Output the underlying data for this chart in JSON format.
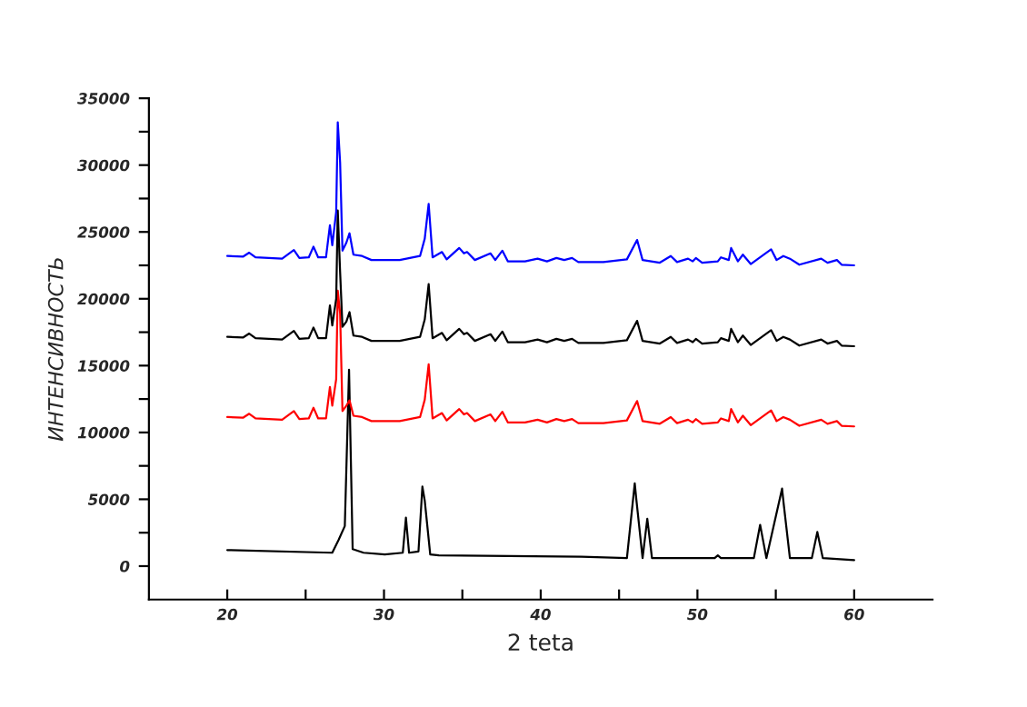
{
  "chart_data": {
    "type": "line",
    "xlabel": "2 teta",
    "ylabel": "ИНТЕНСИВНОСТЬ",
    "xlim": [
      15,
      65
    ],
    "ylim": [
      -2500,
      35000
    ],
    "xticks": [
      20,
      {
        "value": 25,
        "label": null
      },
      30,
      {
        "value": 35,
        "label": null
      },
      40,
      {
        "value": 45,
        "label": null
      },
      50,
      {
        "value": 55,
        "label": null
      },
      60
    ],
    "yticks": [
      0,
      {
        "value": 2500,
        "label": null
      },
      5000,
      {
        "value": 7500,
        "label": null
      },
      10000,
      {
        "value": 12500,
        "label": null
      },
      15000,
      {
        "value": 17500,
        "label": null
      },
      20000,
      {
        "value": 22500,
        "label": null
      },
      25000,
      {
        "value": 27500,
        "label": null
      },
      30000,
      {
        "value": 32500,
        "label": null
      },
      35000
    ],
    "grid": false,
    "legend": false,
    "marker": "none",
    "line_style": "solid",
    "series": [
      {
        "color": "#000000",
        "x": [
          20,
          26.7,
          27.1,
          27.5,
          27.77,
          28.0,
          28.7,
          30.05,
          31.2,
          31.4,
          31.6,
          32.2,
          32.45,
          32.6,
          32.95,
          33.5,
          42.6,
          45.5,
          46.0,
          46.1,
          46.5,
          46.8,
          47.1,
          51.1,
          51.3,
          51.5,
          53.6,
          54.0,
          54.4,
          55.4,
          55.5,
          55.9,
          57.3,
          57.65,
          58.0,
          60
        ],
        "values": [
          1200,
          1000,
          1950,
          3000,
          14700,
          1270,
          1000,
          880,
          1000,
          3630,
          1000,
          1100,
          5950,
          4900,
          880,
          800,
          700,
          600,
          6200,
          5000,
          600,
          3540,
          600,
          600,
          800,
          600,
          600,
          3090,
          600,
          5800,
          4700,
          600,
          600,
          2550,
          600,
          450
        ]
      },
      {
        "color": "#ff0000",
        "x": [
          20,
          21,
          21.4,
          21.8,
          23.5,
          24.25,
          24.6,
          25.2,
          25.5,
          25.8,
          26.3,
          26.55,
          26.7,
          26.95,
          27.05,
          27.2,
          27.35,
          27.6,
          27.8,
          28.05,
          28.6,
          29.2,
          31,
          32.3,
          32.6,
          32.85,
          33.1,
          33.7,
          34,
          34.8,
          35.1,
          35.3,
          35.8,
          36.8,
          37.1,
          37.55,
          37.9,
          39,
          39.8,
          40.4,
          41,
          41.5,
          42,
          42.4,
          44,
          45.5,
          46.15,
          46.5,
          47.6,
          48.3,
          48.7,
          49.4,
          49.7,
          49.9,
          50.3,
          51.3,
          51.5,
          52,
          52.15,
          52.58,
          52.9,
          53.4,
          54.7,
          55.05,
          55.48,
          55.9,
          56.5,
          57.9,
          58.3,
          58.9,
          59.2,
          60
        ],
        "values": [
          11150,
          11100,
          11400,
          11050,
          10950,
          11600,
          11000,
          11050,
          11850,
          11050,
          11050,
          13400,
          12000,
          14000,
          20600,
          18900,
          11600,
          12000,
          12400,
          11250,
          11150,
          10850,
          10850,
          11150,
          12450,
          15100,
          11050,
          11450,
          10900,
          11750,
          11350,
          11450,
          10850,
          11350,
          10850,
          11550,
          10750,
          10750,
          10950,
          10750,
          11000,
          10850,
          11000,
          10700,
          10700,
          10900,
          12350,
          10850,
          10650,
          11150,
          10700,
          10950,
          10750,
          11000,
          10650,
          10750,
          11050,
          10850,
          11750,
          10750,
          11250,
          10550,
          11650,
          10850,
          11150,
          10950,
          10500,
          10950,
          10650,
          10850,
          10500,
          10450
        ]
      },
      {
        "color": "#000000",
        "x": [
          20,
          21,
          21.4,
          21.8,
          23.5,
          24.25,
          24.6,
          25.2,
          25.5,
          25.8,
          26.3,
          26.55,
          26.7,
          26.95,
          27.05,
          27.2,
          27.35,
          27.6,
          27.8,
          28.05,
          28.6,
          29.2,
          31,
          32.3,
          32.6,
          32.85,
          33.1,
          33.7,
          34,
          34.8,
          35.1,
          35.3,
          35.8,
          36.8,
          37.1,
          37.55,
          37.9,
          39,
          39.8,
          40.4,
          41,
          41.5,
          42,
          42.4,
          44,
          45.5,
          46.15,
          46.5,
          47.6,
          48.3,
          48.7,
          49.4,
          49.7,
          49.9,
          50.3,
          51.3,
          51.5,
          52,
          52.15,
          52.58,
          52.9,
          53.4,
          54.7,
          55.05,
          55.48,
          55.9,
          56.5,
          57.9,
          58.3,
          58.9,
          59.2,
          60
        ],
        "values": [
          17150,
          17100,
          17400,
          17050,
          16950,
          17600,
          17000,
          17050,
          17850,
          17050,
          17050,
          19500,
          18000,
          20000,
          26600,
          22000,
          17900,
          18300,
          19000,
          17250,
          17150,
          16850,
          16850,
          17150,
          18450,
          21100,
          17050,
          17450,
          16900,
          17750,
          17350,
          17450,
          16850,
          17350,
          16850,
          17550,
          16750,
          16750,
          16950,
          16750,
          17000,
          16850,
          17000,
          16700,
          16700,
          16900,
          18350,
          16850,
          16650,
          17150,
          16700,
          16950,
          16750,
          17000,
          16650,
          16750,
          17050,
          16850,
          17750,
          16750,
          17250,
          16550,
          17650,
          16850,
          17150,
          16950,
          16500,
          16950,
          16650,
          16850,
          16500,
          16450
        ]
      },
      {
        "color": "#0000ff",
        "x": [
          20,
          21,
          21.4,
          21.8,
          23.5,
          24.25,
          24.6,
          25.2,
          25.5,
          25.8,
          26.3,
          26.55,
          26.7,
          26.95,
          27.05,
          27.2,
          27.35,
          27.6,
          27.8,
          28.05,
          28.6,
          29.2,
          31,
          32.3,
          32.6,
          32.85,
          33.1,
          33.7,
          34,
          34.8,
          35.1,
          35.3,
          35.8,
          36.8,
          37.1,
          37.55,
          37.9,
          39,
          39.8,
          40.4,
          41,
          41.5,
          42,
          42.4,
          44,
          45.5,
          46.15,
          46.5,
          47.6,
          48.3,
          48.7,
          49.4,
          49.7,
          49.9,
          50.3,
          51.3,
          51.5,
          52,
          52.15,
          52.58,
          52.9,
          53.4,
          54.7,
          55.05,
          55.48,
          55.9,
          56.5,
          57.9,
          58.3,
          58.9,
          59.2,
          60
        ],
        "values": [
          23200,
          23150,
          23450,
          23100,
          23000,
          23650,
          23050,
          23100,
          23900,
          23100,
          23100,
          25500,
          24000,
          26500,
          33200,
          30200,
          23600,
          24200,
          24900,
          23300,
          23200,
          22900,
          22900,
          23200,
          24500,
          27100,
          23100,
          23500,
          22950,
          23800,
          23400,
          23500,
          22900,
          23400,
          22900,
          23600,
          22800,
          22800,
          23000,
          22800,
          23050,
          22900,
          23050,
          22750,
          22750,
          22950,
          24400,
          22900,
          22700,
          23200,
          22750,
          23000,
          22800,
          23050,
          22700,
          22800,
          23100,
          22900,
          23800,
          22800,
          23300,
          22600,
          23700,
          22900,
          23200,
          23000,
          22550,
          23000,
          22700,
          22900,
          22550,
          22500
        ]
      }
    ]
  }
}
